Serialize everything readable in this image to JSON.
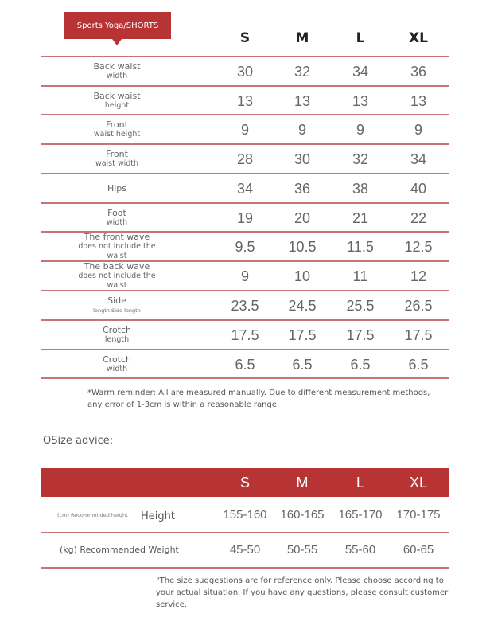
{
  "size_chart": {
    "title": "Sports Yoga/SHORTS",
    "sizes": [
      "S",
      "M",
      "L",
      "XL"
    ],
    "rows": [
      {
        "label1": "Back waist",
        "label2": "width",
        "values": [
          "30",
          "32",
          "34",
          "36"
        ]
      },
      {
        "label1": "Back waist",
        "label2": "height",
        "values": [
          "13",
          "13",
          "13",
          "13"
        ]
      },
      {
        "label1": "Front",
        "label2": "waist height",
        "values": [
          "9",
          "9",
          "9",
          "9"
        ]
      },
      {
        "label1": "Front",
        "label2": "waist width",
        "values": [
          "28",
          "30",
          "32",
          "34"
        ]
      },
      {
        "label1": "Hips",
        "label2": "",
        "values": [
          "34",
          "36",
          "38",
          "40"
        ]
      },
      {
        "label1": "Foot",
        "label2": "width",
        "values": [
          "19",
          "20",
          "21",
          "22"
        ]
      },
      {
        "label1": "The front wave",
        "label2": "does not include the waist",
        "values": [
          "9.5",
          "10.5",
          "11.5",
          "12.5"
        ]
      },
      {
        "label1": "The back wave",
        "label2": "does not include the waist",
        "values": [
          "9",
          "10",
          "11",
          "12"
        ]
      },
      {
        "label1": "Side",
        "label2": "length Side length",
        "values": [
          "23.5",
          "24.5",
          "25.5",
          "26.5"
        ]
      },
      {
        "label1": "Crotch",
        "label2": "length",
        "values": [
          "17.5",
          "17.5",
          "17.5",
          "17.5"
        ]
      },
      {
        "label1": "Crotch",
        "label2": "width",
        "values": [
          "6.5",
          "6.5",
          "6.5",
          "6.5"
        ]
      }
    ],
    "reminder": "*Warm reminder: All are measured manually. Due to different measurement methods, any error of 1-3cm is within a reasonable range."
  },
  "size_advice": {
    "title": "OSize advice:",
    "sizes": [
      "S",
      "M",
      "L",
      "XL"
    ],
    "height_row": {
      "sublabel": "(cm) Recommended height",
      "label": "Height",
      "values": [
        "155-160",
        "160-165",
        "165-170",
        "170-175"
      ]
    },
    "weight_row": {
      "label": "(kg) Recommended Weight",
      "values": [
        "45-50",
        "50-55",
        "55-60",
        "60-65"
      ]
    },
    "note": "\"The size suggestions are for reference only. Please choose according to your actual situation. If you have any questions, please consult customer service."
  },
  "colors": {
    "accent": "#b83434",
    "divider": "#c87474"
  }
}
